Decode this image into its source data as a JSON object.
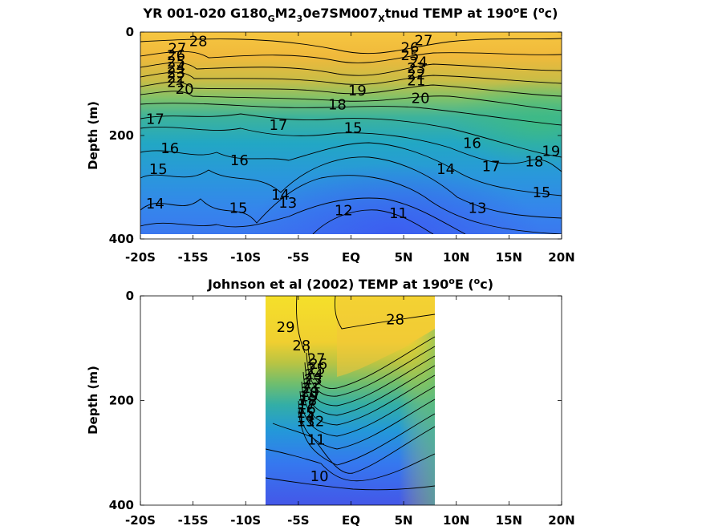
{
  "chart_data": [
    {
      "type": "contour",
      "title_parts": [
        "YR 001-020 G180",
        "G",
        "M2",
        "3",
        "0e7SM007",
        "X",
        "tnud TEMP at 190",
        "o",
        "E (",
        "o",
        "c)"
      ],
      "ylabel": "Depth (m)",
      "xlabel": "",
      "x_ticks": [
        "-20S",
        "-15S",
        "-10S",
        "-5S",
        "EQ",
        "5N",
        "10N",
        "15N",
        "20N"
      ],
      "y_ticks": [
        "0",
        "200",
        "400"
      ],
      "xlim": [
        -20,
        20
      ],
      "ylim": [
        400,
        0
      ],
      "data_extent": {
        "x": [
          -20,
          20
        ],
        "depth": [
          0,
          385
        ]
      },
      "contour_labels": [
        {
          "text": "28",
          "x": -14.5,
          "depth": 18
        },
        {
          "text": "27",
          "x": -16.5,
          "depth": 32
        },
        {
          "text": "26",
          "x": -16.6,
          "depth": 45
        },
        {
          "text": "25",
          "x": -16.6,
          "depth": 57
        },
        {
          "text": "24",
          "x": -16.6,
          "depth": 68
        },
        {
          "text": "23",
          "x": -16.6,
          "depth": 78
        },
        {
          "text": "22",
          "x": -16.6,
          "depth": 88
        },
        {
          "text": "21",
          "x": -16.6,
          "depth": 97
        },
        {
          "text": "20",
          "x": -15.8,
          "depth": 110
        },
        {
          "text": "27",
          "x": 6.9,
          "depth": 16
        },
        {
          "text": "26",
          "x": 5.6,
          "depth": 30
        },
        {
          "text": "25",
          "x": 5.6,
          "depth": 45
        },
        {
          "text": "24",
          "x": 6.4,
          "depth": 58
        },
        {
          "text": "23",
          "x": 6.2,
          "depth": 70
        },
        {
          "text": "22",
          "x": 6.2,
          "depth": 82
        },
        {
          "text": "21",
          "x": 6.2,
          "depth": 94
        },
        {
          "text": "20",
          "x": 6.6,
          "depth": 128
        },
        {
          "text": "19",
          "x": 0.6,
          "depth": 113
        },
        {
          "text": "18",
          "x": -1.3,
          "depth": 140
        },
        {
          "text": "17",
          "x": -18.6,
          "depth": 168
        },
        {
          "text": "17",
          "x": -6.9,
          "depth": 180
        },
        {
          "text": "17",
          "x": 13.3,
          "depth": 260
        },
        {
          "text": "16",
          "x": -17.2,
          "depth": 225
        },
        {
          "text": "16",
          "x": -10.6,
          "depth": 248
        },
        {
          "text": "16",
          "x": 11.5,
          "depth": 215
        },
        {
          "text": "15",
          "x": -18.3,
          "depth": 265
        },
        {
          "text": "15",
          "x": -10.7,
          "depth": 340
        },
        {
          "text": "15",
          "x": 0.2,
          "depth": 185
        },
        {
          "text": "15",
          "x": 18.1,
          "depth": 310
        },
        {
          "text": "14",
          "x": -18.6,
          "depth": 332
        },
        {
          "text": "14",
          "x": -6.7,
          "depth": 315
        },
        {
          "text": "14",
          "x": 9.0,
          "depth": 265
        },
        {
          "text": "13",
          "x": -6.0,
          "depth": 330
        },
        {
          "text": "13",
          "x": 12.0,
          "depth": 340
        },
        {
          "text": "12",
          "x": -0.7,
          "depth": 345
        },
        {
          "text": "11",
          "x": 4.5,
          "depth": 350
        },
        {
          "text": "18",
          "x": 17.4,
          "depth": 250
        },
        {
          "text": "19",
          "x": 19.0,
          "depth": 230
        }
      ]
    },
    {
      "type": "contour",
      "title_parts": [
        "Johnson et al (2002) TEMP at 190",
        "o",
        "E (",
        "o",
        "c)"
      ],
      "ylabel": "Depth (m)",
      "xlabel": "",
      "x_ticks": [
        "-20S",
        "-15S",
        "-10S",
        "-5S",
        "EQ",
        "5N",
        "10N",
        "15N",
        "20N"
      ],
      "y_ticks": [
        "0",
        "200",
        "400"
      ],
      "xlim": [
        -20,
        20
      ],
      "ylim": [
        400,
        0
      ],
      "data_extent": {
        "x": [
          -8,
          8
        ],
        "depth": [
          0,
          400
        ]
      },
      "contour_labels": [
        {
          "text": "29",
          "x": -6.2,
          "depth": 60
        },
        {
          "text": "28",
          "x": -4.7,
          "depth": 95
        },
        {
          "text": "28",
          "x": 4.2,
          "depth": 45
        },
        {
          "text": "27",
          "x": -3.3,
          "depth": 120
        },
        {
          "text": "26",
          "x": -3.1,
          "depth": 130
        },
        {
          "text": "25",
          "x": -3.3,
          "depth": 140
        },
        {
          "text": "24",
          "x": -3.5,
          "depth": 150
        },
        {
          "text": "23",
          "x": -3.6,
          "depth": 160
        },
        {
          "text": "22",
          "x": -3.7,
          "depth": 168
        },
        {
          "text": "21",
          "x": -3.8,
          "depth": 176
        },
        {
          "text": "20",
          "x": -3.9,
          "depth": 184
        },
        {
          "text": "19",
          "x": -4.0,
          "depth": 192
        },
        {
          "text": "18",
          "x": -4.1,
          "depth": 200
        },
        {
          "text": "17",
          "x": -4.2,
          "depth": 208
        },
        {
          "text": "16",
          "x": -4.2,
          "depth": 216
        },
        {
          "text": "15",
          "x": -4.3,
          "depth": 224
        },
        {
          "text": "14",
          "x": -4.3,
          "depth": 232
        },
        {
          "text": "13",
          "x": -4.3,
          "depth": 240
        },
        {
          "text": "12",
          "x": -3.4,
          "depth": 240
        },
        {
          "text": "11",
          "x": -3.3,
          "depth": 275
        },
        {
          "text": "10",
          "x": -3.0,
          "depth": 345
        }
      ]
    }
  ]
}
